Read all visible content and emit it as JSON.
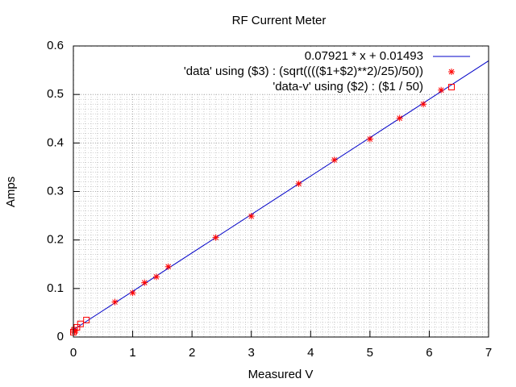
{
  "chart_data": {
    "type": "scatter",
    "title": "RF Current Meter",
    "x_label": "Measured V",
    "y_label": "Amps",
    "xlim": [
      0,
      7
    ],
    "ylim": [
      0,
      0.6
    ],
    "xticks": [
      0,
      1,
      2,
      3,
      4,
      5,
      6,
      7
    ],
    "yticks": [
      0,
      0.1,
      0.2,
      0.3,
      0.4,
      0.5,
      0.6
    ],
    "grid": true,
    "legend": "top-right",
    "series": [
      {
        "name": "0.07921 * x + 0.01493",
        "style": "line",
        "color": "#0000c8",
        "x": [
          0,
          7
        ],
        "values": [
          0.01493,
          0.5694
        ]
      },
      {
        "name": "'data' using ($3) : (sqrt(((($1+$2)**2)/25)/50))",
        "style": "points",
        "marker": "star",
        "color": "#ff0000",
        "x": [
          0.02,
          0.7,
          1.0,
          1.2,
          1.4,
          1.6,
          2.4,
          3.0,
          3.8,
          4.4,
          5.0,
          5.5,
          5.9,
          6.2
        ],
        "values": [
          0.012,
          0.072,
          0.091,
          0.112,
          0.124,
          0.145,
          0.205,
          0.249,
          0.316,
          0.365,
          0.408,
          0.451,
          0.48,
          0.509
        ]
      },
      {
        "name": "'data-v' using ($2) : ($1 / 50)",
        "style": "points",
        "marker": "square",
        "color": "#ff0000",
        "x": [
          0.0,
          0.02,
          0.06,
          0.12,
          0.22
        ],
        "values": [
          0.01,
          0.014,
          0.02,
          0.027,
          0.035
        ]
      }
    ]
  }
}
